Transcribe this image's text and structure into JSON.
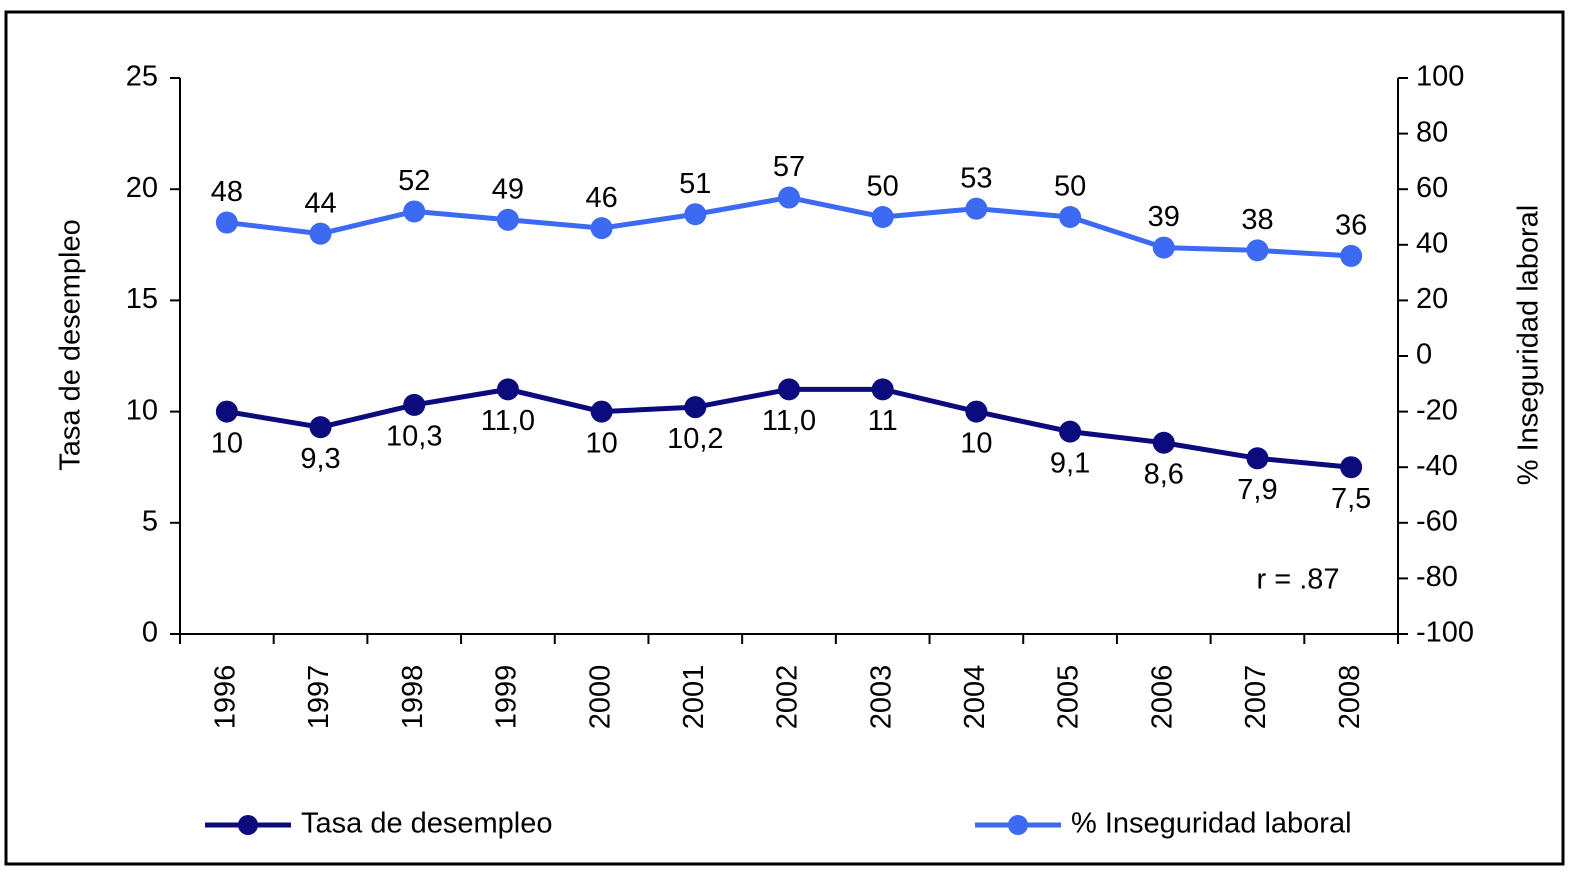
{
  "chart_data": {
    "type": "line",
    "y_label": "Tasa de desempleo",
    "y2_label": "% Inseguridad laboral",
    "annotation": "r = .87",
    "categories": [
      "1996",
      "1997",
      "1998",
      "1999",
      "2000",
      "2001",
      "2002",
      "2003",
      "2004",
      "2005",
      "2006",
      "2007",
      "2008"
    ],
    "series": [
      {
        "name": "Tasa de desempleo",
        "color": "#0b0b7e",
        "values": [
          10,
          9.3,
          10.3,
          11.0,
          10,
          10.2,
          11.0,
          11,
          10,
          9.1,
          8.6,
          7.9,
          7.5
        ],
        "value_labels": [
          "10",
          "9,3",
          "10,3",
          "11,0",
          "10",
          "10,2",
          "11,0",
          "11",
          "10",
          "9,1",
          "8,6",
          "7,9",
          "7,5"
        ]
      },
      {
        "name": "% Inseguridad laboral",
        "color": "#3d6af2",
        "axis": "y2",
        "values": [
          48,
          44,
          52,
          49,
          46,
          51,
          57,
          50,
          53,
          50,
          39,
          38,
          36
        ]
      }
    ],
    "ylim": [
      0,
      25
    ],
    "yticks": [
      0,
      5,
      10,
      15,
      20,
      25
    ],
    "y2lim": [
      -100,
      100
    ],
    "y2ticks": [
      -100,
      -80,
      -60,
      -40,
      -20,
      0,
      20,
      40,
      60,
      80,
      100
    ],
    "grid": false,
    "legend": "bottom"
  }
}
